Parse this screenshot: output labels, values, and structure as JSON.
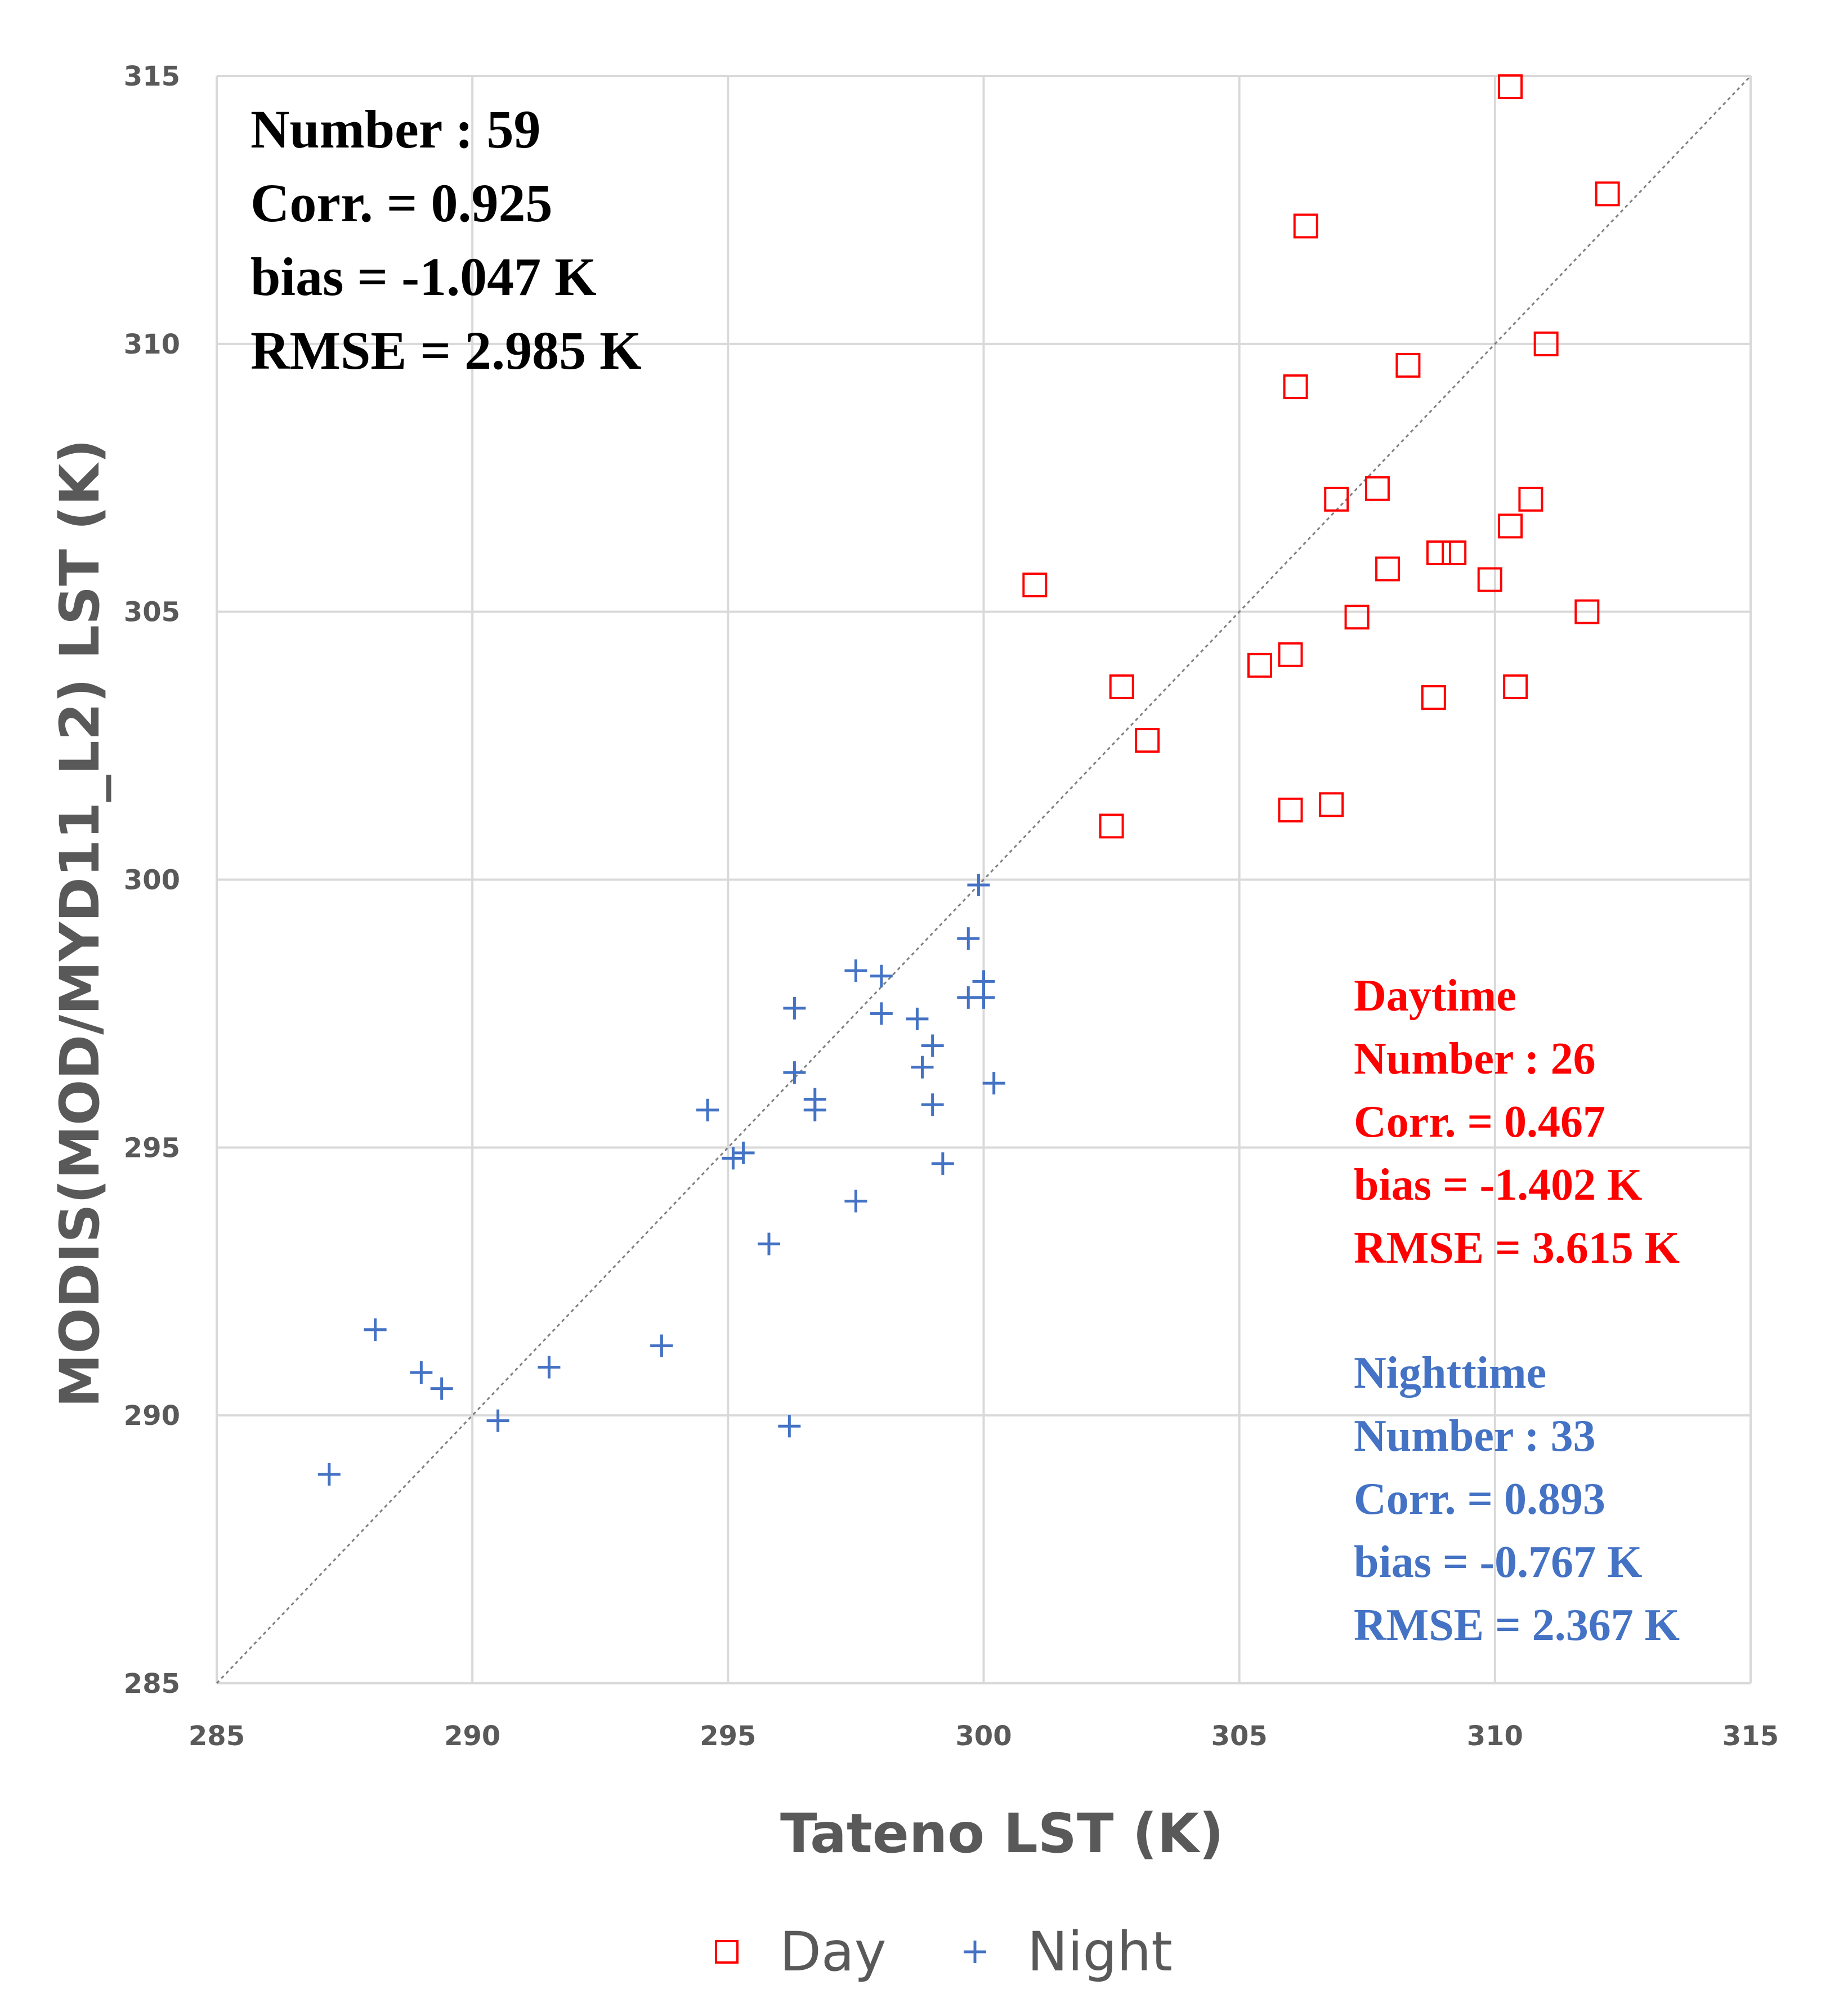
{
  "colors": {
    "day": "#ff0000",
    "night": "#4472c4",
    "grid": "#d9d9d9",
    "axis_text": "#595959",
    "reference_line": "#7f7f7f"
  },
  "chart_data": {
    "type": "scatter",
    "title": "",
    "xlabel": "Tateno LST (K)",
    "ylabel": "MODIS(MOD/MYD11_L2) LST (K)",
    "xlim": [
      285,
      315
    ],
    "ylim": [
      285,
      315
    ],
    "xticks": [
      "285",
      "290",
      "295",
      "300",
      "305",
      "310",
      "315"
    ],
    "yticks": [
      "285",
      "290",
      "295",
      "300",
      "305",
      "310",
      "315"
    ],
    "grid": true,
    "reference_line": "1:1",
    "legend_position": "bottom",
    "overall_stats": [
      "Number : 59",
      "Corr. = 0.925",
      "bias = -1.047 K",
      "RMSE = 2.985 K"
    ],
    "series": [
      {
        "name": "Day",
        "marker": "square-open",
        "stats_heading": "Daytime",
        "stats": [
          "Number : 26",
          "Corr. = 0.467",
          "bias = -1.402 K",
          "RMSE = 3.615 K"
        ],
        "points": [
          [
            310.3,
            314.8
          ],
          [
            312.2,
            312.8
          ],
          [
            306.3,
            312.2
          ],
          [
            311.0,
            310.0
          ],
          [
            306.1,
            309.2
          ],
          [
            308.3,
            309.6
          ],
          [
            307.7,
            307.3
          ],
          [
            306.9,
            307.1
          ],
          [
            310.7,
            307.1
          ],
          [
            310.3,
            306.6
          ],
          [
            308.9,
            306.1
          ],
          [
            309.2,
            306.1
          ],
          [
            307.9,
            305.8
          ],
          [
            309.9,
            305.6
          ],
          [
            301.0,
            305.5
          ],
          [
            311.8,
            305.0
          ],
          [
            307.3,
            304.9
          ],
          [
            306.0,
            304.2
          ],
          [
            305.4,
            304.0
          ],
          [
            302.7,
            303.6
          ],
          [
            310.4,
            303.6
          ],
          [
            308.8,
            303.4
          ],
          [
            303.2,
            302.6
          ],
          [
            306.0,
            301.3
          ],
          [
            306.8,
            301.4
          ],
          [
            302.5,
            301.0
          ]
        ]
      },
      {
        "name": "Night",
        "marker": "plus",
        "stats_heading": "Nighttime",
        "stats": [
          "Number : 33",
          "Corr. = 0.893",
          "bias = -0.767 K",
          "RMSE = 2.367 K"
        ],
        "points": [
          [
            299.9,
            299.9
          ],
          [
            299.7,
            298.9
          ],
          [
            297.5,
            298.3
          ],
          [
            298.0,
            298.2
          ],
          [
            300.0,
            298.1
          ],
          [
            299.7,
            297.8
          ],
          [
            300.0,
            297.8
          ],
          [
            296.3,
            297.6
          ],
          [
            298.0,
            297.5
          ],
          [
            298.7,
            297.4
          ],
          [
            299.0,
            296.9
          ],
          [
            296.3,
            296.4
          ],
          [
            298.8,
            296.5
          ],
          [
            300.2,
            296.2
          ],
          [
            296.7,
            295.9
          ],
          [
            296.7,
            295.7
          ],
          [
            299.0,
            295.8
          ],
          [
            294.6,
            295.7
          ],
          [
            295.1,
            294.8
          ],
          [
            295.3,
            294.9
          ],
          [
            299.2,
            294.7
          ],
          [
            297.5,
            294.0
          ],
          [
            295.8,
            293.2
          ],
          [
            288.1,
            291.6
          ],
          [
            293.7,
            291.3
          ],
          [
            289.0,
            290.8
          ],
          [
            291.5,
            290.9
          ],
          [
            289.4,
            290.5
          ],
          [
            290.5,
            289.9
          ],
          [
            296.2,
            289.8
          ],
          [
            287.2,
            288.9
          ],
          [
            288.1,
            291.6
          ],
          [
            293.7,
            291.3
          ]
        ]
      }
    ]
  }
}
